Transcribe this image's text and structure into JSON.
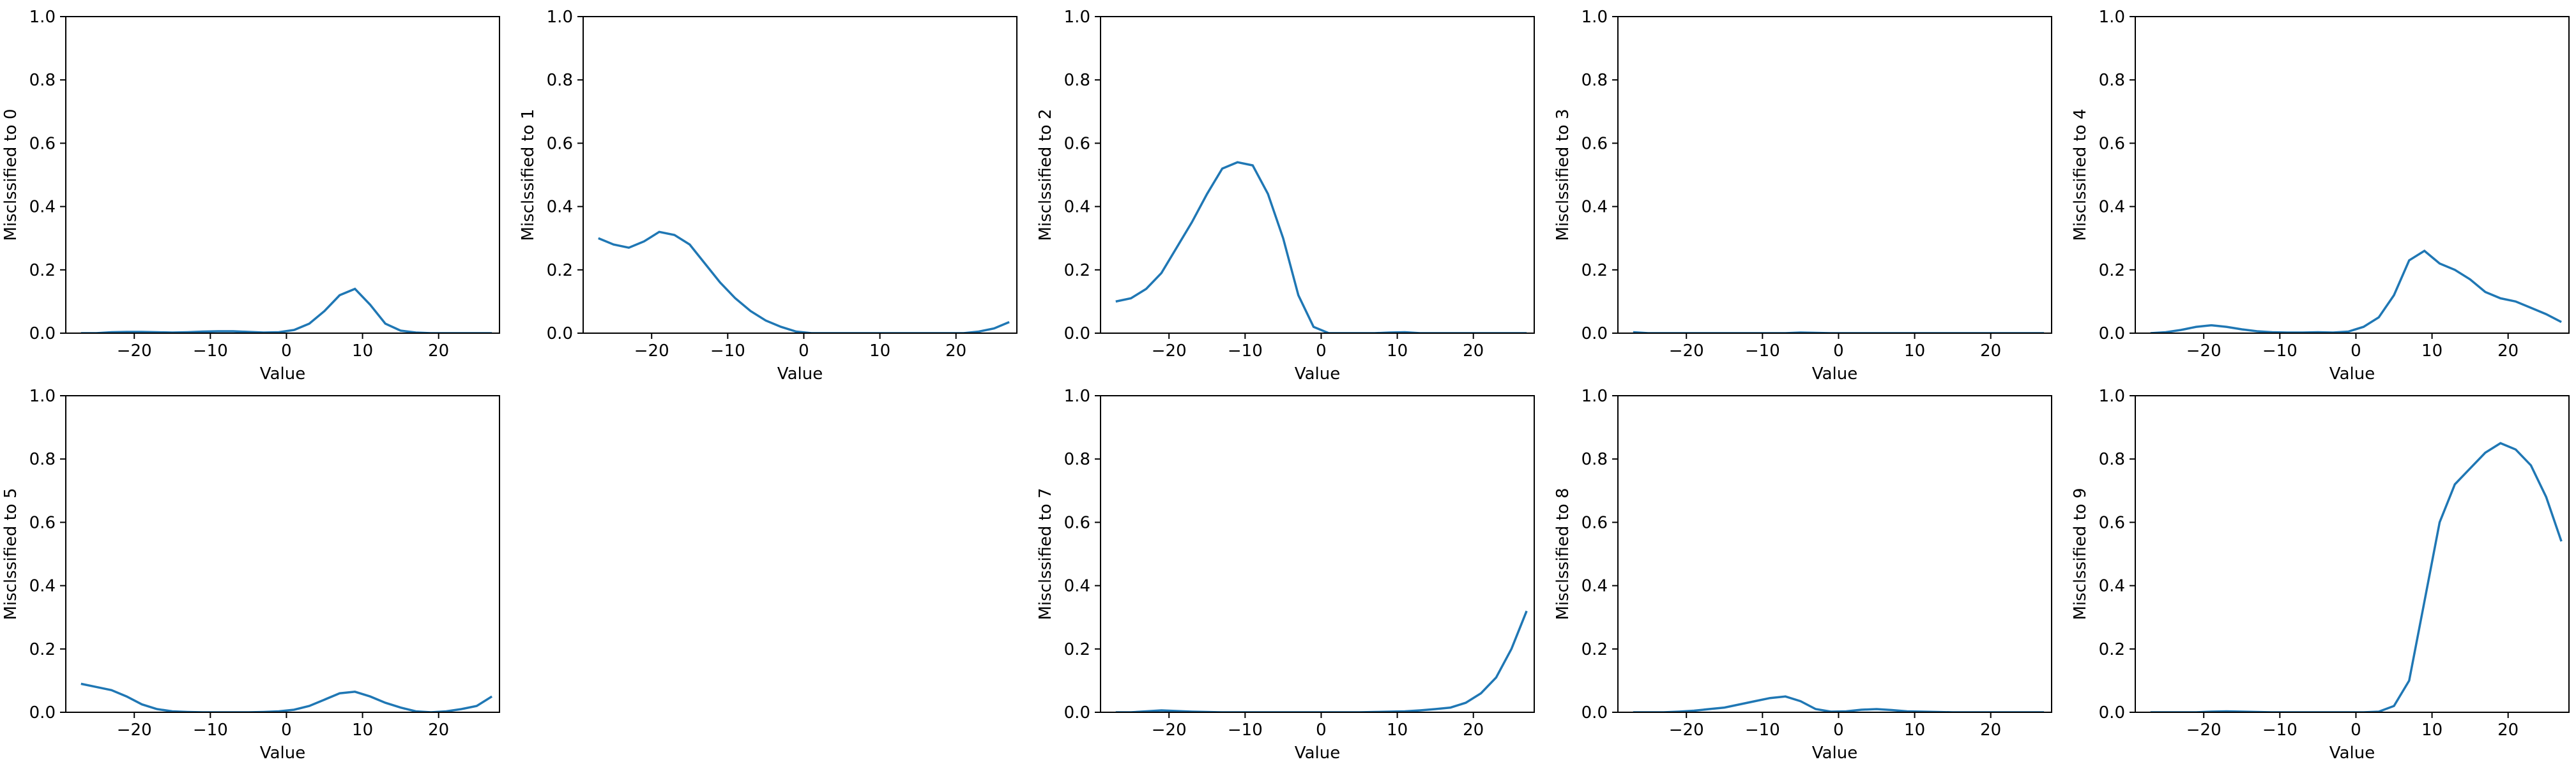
{
  "chart_data": [
    {
      "type": "line",
      "ylabel": "Misclssified to 0",
      "xlabel": "Value",
      "color": "#1f77b4",
      "x": [
        -27,
        -25,
        -23,
        -21,
        -19,
        -17,
        -15,
        -13,
        -11,
        -9,
        -7,
        -5,
        -3,
        -1,
        1,
        3,
        5,
        7,
        9,
        11,
        13,
        15,
        17,
        19,
        21,
        23,
        25,
        27
      ],
      "values": [
        0,
        0,
        0.003,
        0.004,
        0.004,
        0.003,
        0.002,
        0.003,
        0.005,
        0.006,
        0.006,
        0.004,
        0.002,
        0.003,
        0.01,
        0.03,
        0.07,
        0.12,
        0.14,
        0.09,
        0.03,
        0.008,
        0.002,
        0,
        0,
        0,
        0,
        0
      ],
      "xlim": [
        -29,
        28
      ],
      "ylim": [
        0,
        1
      ],
      "xticks": [
        {
          "value": -20,
          "label": "−20"
        },
        {
          "value": -10,
          "label": "−10"
        },
        0,
        10,
        20
      ],
      "yticks": [
        {
          "value": 0,
          "label": "0.0"
        },
        0.2,
        0.4,
        0.6,
        0.8,
        {
          "value": 1,
          "label": "1.0"
        }
      ]
    },
    {
      "type": "line",
      "ylabel": "Misclssified to 1",
      "xlabel": "Value",
      "color": "#1f77b4",
      "x": [
        -27,
        -25,
        -23,
        -21,
        -19,
        -17,
        -15,
        -13,
        -11,
        -9,
        -7,
        -5,
        -3,
        -1,
        1,
        3,
        5,
        7,
        9,
        11,
        13,
        15,
        17,
        19,
        21,
        23,
        25,
        27
      ],
      "values": [
        0.3,
        0.28,
        0.27,
        0.29,
        0.32,
        0.31,
        0.28,
        0.22,
        0.16,
        0.11,
        0.07,
        0.04,
        0.02,
        0.005,
        0,
        0,
        0,
        0,
        0,
        0,
        0,
        0,
        0,
        0,
        0,
        0.005,
        0.015,
        0.035
      ],
      "xlim": [
        -29,
        28
      ],
      "ylim": [
        0,
        1
      ],
      "xticks": [
        {
          "value": -20,
          "label": "−20"
        },
        {
          "value": -10,
          "label": "−10"
        },
        0,
        10,
        20
      ],
      "yticks": [
        {
          "value": 0,
          "label": "0.0"
        },
        0.2,
        0.4,
        0.6,
        0.8,
        {
          "value": 1,
          "label": "1.0"
        }
      ]
    },
    {
      "type": "line",
      "ylabel": "Misclssified to 2",
      "xlabel": "Value",
      "color": "#1f77b4",
      "x": [
        -27,
        -25,
        -23,
        -21,
        -19,
        -17,
        -15,
        -13,
        -11,
        -9,
        -7,
        -5,
        -3,
        -1,
        1,
        3,
        5,
        7,
        9,
        11,
        13,
        15,
        17,
        19,
        21,
        23,
        25,
        27
      ],
      "values": [
        0.1,
        0.11,
        0.14,
        0.19,
        0.27,
        0.35,
        0.44,
        0.52,
        0.54,
        0.53,
        0.44,
        0.3,
        0.12,
        0.02,
        0,
        0,
        0,
        0,
        0.002,
        0.003,
        0,
        0,
        0,
        0,
        0,
        0,
        0,
        0
      ],
      "xlim": [
        -29,
        28
      ],
      "ylim": [
        0,
        1
      ],
      "xticks": [
        {
          "value": -20,
          "label": "−20"
        },
        {
          "value": -10,
          "label": "−10"
        },
        0,
        10,
        20
      ],
      "yticks": [
        {
          "value": 0,
          "label": "0.0"
        },
        0.2,
        0.4,
        0.6,
        0.8,
        {
          "value": 1,
          "label": "1.0"
        }
      ]
    },
    {
      "type": "line",
      "ylabel": "Misclssified to 3",
      "xlabel": "Value",
      "color": "#1f77b4",
      "x": [
        -27,
        -25,
        -23,
        -21,
        -19,
        -17,
        -15,
        -13,
        -11,
        -9,
        -7,
        -5,
        -3,
        -1,
        1,
        3,
        5,
        7,
        9,
        11,
        13,
        15,
        17,
        19,
        21,
        23,
        25,
        27
      ],
      "values": [
        0.003,
        0,
        0,
        0,
        0,
        0,
        0,
        0,
        0,
        0,
        0,
        0.002,
        0.001,
        0,
        0,
        0,
        0,
        0,
        0,
        0,
        0,
        0,
        0,
        0,
        0,
        0,
        0,
        0
      ],
      "xlim": [
        -29,
        28
      ],
      "ylim": [
        0,
        1
      ],
      "xticks": [
        {
          "value": -20,
          "label": "−20"
        },
        {
          "value": -10,
          "label": "−10"
        },
        0,
        10,
        20
      ],
      "yticks": [
        {
          "value": 0,
          "label": "0.0"
        },
        0.2,
        0.4,
        0.6,
        0.8,
        {
          "value": 1,
          "label": "1.0"
        }
      ]
    },
    {
      "type": "line",
      "ylabel": "Misclssified to 4",
      "xlabel": "Value",
      "color": "#1f77b4",
      "x": [
        -27,
        -25,
        -23,
        -21,
        -19,
        -17,
        -15,
        -13,
        -11,
        -9,
        -7,
        -5,
        -3,
        -1,
        1,
        3,
        5,
        7,
        9,
        11,
        13,
        15,
        17,
        19,
        21,
        23,
        25,
        27
      ],
      "values": [
        0,
        0.003,
        0.01,
        0.02,
        0.025,
        0.02,
        0.012,
        0.006,
        0.003,
        0.002,
        0.002,
        0.003,
        0.002,
        0.005,
        0.02,
        0.05,
        0.12,
        0.23,
        0.26,
        0.22,
        0.2,
        0.17,
        0.13,
        0.11,
        0.1,
        0.08,
        0.06,
        0.035
      ],
      "xlim": [
        -29,
        28
      ],
      "ylim": [
        0,
        1
      ],
      "xticks": [
        {
          "value": -20,
          "label": "−20"
        },
        {
          "value": -10,
          "label": "−10"
        },
        0,
        10,
        20
      ],
      "yticks": [
        {
          "value": 0,
          "label": "0.0"
        },
        0.2,
        0.4,
        0.6,
        0.8,
        {
          "value": 1,
          "label": "1.0"
        }
      ]
    },
    {
      "type": "line",
      "ylabel": "Misclssified to 5",
      "xlabel": "Value",
      "color": "#1f77b4",
      "x": [
        -27,
        -25,
        -23,
        -21,
        -19,
        -17,
        -15,
        -13,
        -11,
        -9,
        -7,
        -5,
        -3,
        -1,
        1,
        3,
        5,
        7,
        9,
        11,
        13,
        15,
        17,
        19,
        21,
        23,
        25,
        27
      ],
      "values": [
        0.09,
        0.08,
        0.07,
        0.05,
        0.025,
        0.01,
        0.003,
        0.001,
        0,
        0,
        0,
        0,
        0.001,
        0.003,
        0.008,
        0.02,
        0.04,
        0.06,
        0.065,
        0.05,
        0.03,
        0.015,
        0.003,
        0,
        0.003,
        0.01,
        0.02,
        0.05
      ],
      "xlim": [
        -29,
        28
      ],
      "ylim": [
        0,
        1
      ],
      "xticks": [
        {
          "value": -20,
          "label": "−20"
        },
        {
          "value": -10,
          "label": "−10"
        },
        0,
        10,
        20
      ],
      "yticks": [
        {
          "value": 0,
          "label": "0.0"
        },
        0.2,
        0.4,
        0.6,
        0.8,
        {
          "value": 1,
          "label": "1.0"
        }
      ]
    },
    {
      "type": "line",
      "ylabel": "Misclssified to 7",
      "xlabel": "Value",
      "color": "#1f77b4",
      "x": [
        -27,
        -25,
        -23,
        -21,
        -19,
        -17,
        -15,
        -13,
        -11,
        -9,
        -7,
        -5,
        -3,
        -1,
        1,
        3,
        5,
        7,
        9,
        11,
        13,
        15,
        17,
        19,
        21,
        23,
        25,
        27
      ],
      "values": [
        0,
        0,
        0.003,
        0.006,
        0.004,
        0.002,
        0.001,
        0,
        0,
        0,
        0,
        0,
        0,
        0,
        0,
        0,
        0,
        0.001,
        0.002,
        0.003,
        0.006,
        0.01,
        0.015,
        0.03,
        0.06,
        0.11,
        0.2,
        0.32
      ],
      "xlim": [
        -29,
        28
      ],
      "ylim": [
        0,
        1
      ],
      "xticks": [
        {
          "value": -20,
          "label": "−20"
        },
        {
          "value": -10,
          "label": "−10"
        },
        0,
        10,
        20
      ],
      "yticks": [
        {
          "value": 0,
          "label": "0.0"
        },
        0.2,
        0.4,
        0.6,
        0.8,
        {
          "value": 1,
          "label": "1.0"
        }
      ]
    },
    {
      "type": "line",
      "ylabel": "Misclssified to 8",
      "xlabel": "Value",
      "color": "#1f77b4",
      "x": [
        -27,
        -25,
        -23,
        -21,
        -19,
        -17,
        -15,
        -13,
        -11,
        -9,
        -7,
        -5,
        -3,
        -1,
        1,
        3,
        5,
        7,
        9,
        11,
        13,
        15,
        17,
        19,
        21,
        23,
        25,
        27
      ],
      "values": [
        0,
        0,
        0,
        0.002,
        0.005,
        0.01,
        0.015,
        0.025,
        0.035,
        0.045,
        0.05,
        0.035,
        0.01,
        0.002,
        0.003,
        0.008,
        0.01,
        0.007,
        0.003,
        0.002,
        0.001,
        0,
        0,
        0,
        0,
        0,
        0,
        0
      ],
      "xlim": [
        -29,
        28
      ],
      "ylim": [
        0,
        1
      ],
      "xticks": [
        {
          "value": -20,
          "label": "−20"
        },
        {
          "value": -10,
          "label": "−10"
        },
        0,
        10,
        20
      ],
      "yticks": [
        {
          "value": 0,
          "label": "0.0"
        },
        0.2,
        0.4,
        0.6,
        0.8,
        {
          "value": 1,
          "label": "1.0"
        }
      ]
    },
    {
      "type": "line",
      "ylabel": "Misclssified to 9",
      "xlabel": "Value",
      "color": "#1f77b4",
      "x": [
        -27,
        -25,
        -23,
        -21,
        -19,
        -17,
        -15,
        -13,
        -11,
        -9,
        -7,
        -5,
        -3,
        -1,
        1,
        3,
        5,
        7,
        9,
        11,
        13,
        15,
        17,
        19,
        21,
        23,
        25,
        27
      ],
      "values": [
        0,
        0,
        0,
        0,
        0.002,
        0.003,
        0.002,
        0.001,
        0,
        0,
        0,
        0,
        0,
        0,
        0,
        0.002,
        0.02,
        0.1,
        0.35,
        0.6,
        0.72,
        0.77,
        0.82,
        0.85,
        0.83,
        0.78,
        0.68,
        0.54
      ],
      "xlim": [
        -29,
        28
      ],
      "ylim": [
        0,
        1
      ],
      "xticks": [
        {
          "value": -20,
          "label": "−20"
        },
        {
          "value": -10,
          "label": "−10"
        },
        0,
        10,
        20
      ],
      "yticks": [
        {
          "value": 0,
          "label": "0.0"
        },
        0.2,
        0.4,
        0.6,
        0.8,
        {
          "value": 1,
          "label": "1.0"
        }
      ]
    }
  ]
}
